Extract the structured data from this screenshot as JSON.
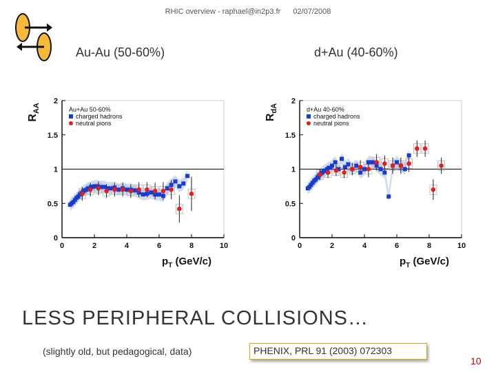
{
  "header": {
    "author": "RHIC overview - raphael@in2p3.fr",
    "date": "02/07/2008"
  },
  "logo": {
    "icon": "phenix-arrows-logo",
    "colors": {
      "fill": "#f6b93b",
      "outline": "#111111"
    }
  },
  "panels": {
    "left_title": "Au-Au (50-60%)",
    "right_title": "d+Au (40-60%)"
  },
  "chart_data": [
    {
      "type": "scatter",
      "title": "",
      "ylabel": "R_AA",
      "xlabel": "p_T (GeV/c)",
      "xlim": [
        0,
        10
      ],
      "ylim": [
        0,
        2
      ],
      "xticks": [
        "0",
        "2",
        "4",
        "6",
        "8",
        "10"
      ],
      "yticks": [
        "0",
        "0.5",
        "1",
        "1.5",
        "2"
      ],
      "legend": {
        "header": "Au+Au 50-60%",
        "placement": "top-left"
      },
      "reference_line": 1,
      "series": [
        {
          "name": "charged hadrons",
          "color": "#1a3ccc",
          "marker": "square",
          "x": [
            0.5,
            0.6,
            0.7,
            0.8,
            0.9,
            1.0,
            1.1,
            1.2,
            1.3,
            1.4,
            1.5,
            1.6,
            1.7,
            1.8,
            1.9,
            2.0,
            2.2,
            2.4,
            2.6,
            2.8,
            3.0,
            3.25,
            3.5,
            3.75,
            4.0,
            4.25,
            4.5,
            4.75,
            5.0,
            5.25,
            5.5,
            5.75,
            6.0,
            6.25,
            6.5,
            6.75,
            7.0,
            7.25,
            7.5,
            7.75
          ],
          "y": [
            0.48,
            0.5,
            0.52,
            0.55,
            0.58,
            0.6,
            0.63,
            0.65,
            0.67,
            0.69,
            0.7,
            0.72,
            0.72,
            0.74,
            0.74,
            0.75,
            0.75,
            0.74,
            0.74,
            0.72,
            0.72,
            0.73,
            0.7,
            0.72,
            0.7,
            0.7,
            0.69,
            0.66,
            0.63,
            0.64,
            0.66,
            0.63,
            0.63,
            0.61,
            0.72,
            0.77,
            0.82,
            0.75,
            0.79,
            0.9
          ]
        },
        {
          "name": "neutral pions",
          "color": "#dd2020",
          "marker": "circle",
          "x": [
            1.25,
            1.75,
            2.25,
            2.75,
            3.25,
            3.75,
            4.25,
            4.75,
            5.25,
            5.75,
            6.25,
            6.75,
            7.25,
            8.0
          ],
          "y": [
            0.64,
            0.7,
            0.72,
            0.68,
            0.7,
            0.7,
            0.68,
            0.7,
            0.7,
            0.68,
            0.68,
            0.7,
            0.42,
            0.64
          ],
          "err": [
            0.1,
            0.1,
            0.1,
            0.1,
            0.1,
            0.1,
            0.1,
            0.11,
            0.11,
            0.12,
            0.13,
            0.14,
            0.2,
            0.25
          ]
        }
      ]
    },
    {
      "type": "scatter",
      "title": "",
      "ylabel": "R_dA",
      "xlabel": "p_T (GeV/c)",
      "xlim": [
        0,
        10
      ],
      "ylim": [
        0,
        2
      ],
      "xticks": [
        "0",
        "2",
        "4",
        "6",
        "8",
        "10"
      ],
      "yticks": [
        "0",
        "0.5",
        "1",
        "1.5",
        "2"
      ],
      "legend": {
        "header": "d+Au 40-60%",
        "placement": "top-left"
      },
      "reference_line": 1,
      "series": [
        {
          "name": "charged hadrons",
          "color": "#1a3ccc",
          "marker": "square",
          "x": [
            0.5,
            0.6,
            0.7,
            0.8,
            0.9,
            1.0,
            1.1,
            1.2,
            1.3,
            1.4,
            1.5,
            1.6,
            1.7,
            1.8,
            1.9,
            2.0,
            2.2,
            2.4,
            2.6,
            2.8,
            3.0,
            3.25,
            3.5,
            3.75,
            4.0,
            4.25,
            4.5,
            4.75,
            5.0,
            5.25,
            5.5,
            5.75,
            6.0,
            6.25,
            6.5,
            6.75
          ],
          "y": [
            0.72,
            0.74,
            0.77,
            0.8,
            0.83,
            0.85,
            0.88,
            0.91,
            0.93,
            0.95,
            0.97,
            0.98,
            1.0,
            1.02,
            1.02,
            1.05,
            1.1,
            1.0,
            1.15,
            1.03,
            1.07,
            1.0,
            1.05,
            0.95,
            1.0,
            1.1,
            1.1,
            1.05,
            1.0,
            0.95,
            0.6,
            1.05,
            1.1,
            1.05,
            1.0,
            1.2
          ]
        },
        {
          "name": "neutral pions",
          "color": "#dd2020",
          "marker": "circle",
          "x": [
            1.25,
            1.75,
            2.25,
            2.75,
            3.25,
            3.75,
            4.25,
            4.75,
            5.25,
            5.75,
            6.25,
            6.75,
            7.25,
            7.75,
            8.25,
            8.75
          ],
          "y": [
            0.92,
            0.95,
            0.98,
            0.95,
            1.0,
            1.03,
            1.0,
            1.1,
            1.08,
            1.05,
            1.05,
            1.08,
            1.3,
            1.3,
            0.7,
            1.05
          ],
          "err": [
            0.08,
            0.08,
            0.08,
            0.08,
            0.09,
            0.1,
            0.12,
            0.12,
            0.12,
            0.12,
            0.12,
            0.12,
            0.12,
            0.12,
            0.15,
            0.12
          ]
        }
      ]
    }
  ],
  "main_title": "LESS PERIPHERAL COLLISIONS…",
  "subtitle": "(slightly old, but pedagogical, data)",
  "reference": "PHENIX, PRL 91 (2003) 072303",
  "page_number": "10"
}
